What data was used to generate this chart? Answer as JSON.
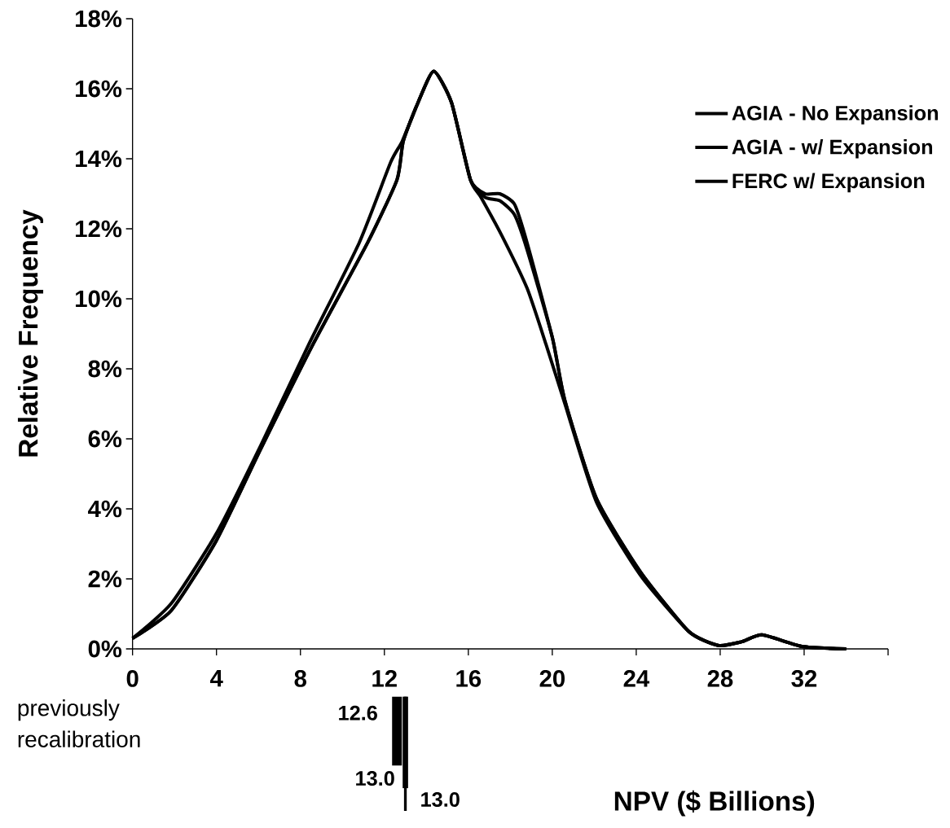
{
  "chart_data": {
    "type": "line",
    "xlabel": "NPV ($ Billions)",
    "ylabel": "Relative Frequency",
    "xlim": [
      0,
      36
    ],
    "ylim": [
      0,
      18
    ],
    "xticks": [
      0,
      4,
      8,
      12,
      16,
      20,
      24,
      28,
      32,
      {
        "value": 36,
        "label": null
      }
    ],
    "yticks": [
      {
        "value": 0,
        "label": "0%"
      },
      {
        "value": 2,
        "label": "2%"
      },
      {
        "value": 4,
        "label": "4%"
      },
      {
        "value": 6,
        "label": "6%"
      },
      {
        "value": 8,
        "label": "8%"
      },
      {
        "value": 10,
        "label": "10%"
      },
      {
        "value": 12,
        "label": "12%"
      },
      {
        "value": 14,
        "label": "14%"
      },
      {
        "value": 16,
        "label": "16%"
      },
      {
        "value": 18,
        "label": "18%"
      }
    ],
    "grid": false,
    "legend": "top right",
    "marker": "none",
    "line_style": "solid",
    "series": [
      {
        "name": "AGIA - No Expansion",
        "color": "#000000",
        "x": [
          0,
          1.85,
          4,
          6.1,
          8.6,
          11.2,
          12.6,
          12.9,
          13.6,
          14.35,
          15.2,
          16.1,
          16.8,
          17.5,
          18.2,
          18.8,
          20,
          20.6,
          22.1,
          24.2,
          26.5,
          27.9,
          29,
          30,
          31.9,
          34
        ],
        "values": [
          0.3,
          1.1,
          3.1,
          5.7,
          8.7,
          11.6,
          13.4,
          14.5,
          15.6,
          16.5,
          15.6,
          13.4,
          13.0,
          13.0,
          12.7,
          11.6,
          8.9,
          7.1,
          4.3,
          2.2,
          0.5,
          0.1,
          0.2,
          0.4,
          0.07,
          0
        ]
      },
      {
        "name": "AGIA - w/ Expansion",
        "color": "#000000",
        "x": [
          0,
          1.85,
          4,
          6.1,
          8.6,
          11.2,
          12.6,
          12.9,
          13.6,
          14.35,
          15.2,
          16.1,
          16.8,
          17.5,
          18.2,
          18.8,
          20,
          20.6,
          22.1,
          24.2,
          26.5,
          27.9,
          29,
          30,
          31.9,
          34
        ],
        "values": [
          0.3,
          1.1,
          3.1,
          5.7,
          8.7,
          11.6,
          13.4,
          14.5,
          15.6,
          16.5,
          15.6,
          13.4,
          12.9,
          12.8,
          12.4,
          11.4,
          8.9,
          7.1,
          4.3,
          2.2,
          0.5,
          0.1,
          0.2,
          0.4,
          0.07,
          0
        ]
      },
      {
        "name": "FERC w/ Expansion",
        "color": "#000000",
        "x": [
          0,
          1.85,
          4,
          6.1,
          8.4,
          10.8,
          12.3,
          12.85,
          13.6,
          14.35,
          15.2,
          16.1,
          16.6,
          17.6,
          18.8,
          19.7,
          20.6,
          22.1,
          24.2,
          26.5,
          27.9,
          29,
          30,
          31.9,
          34
        ],
        "values": [
          0.3,
          1.3,
          3.3,
          5.8,
          8.7,
          11.6,
          13.9,
          14.5,
          15.6,
          16.5,
          15.6,
          13.4,
          12.9,
          11.8,
          10.3,
          8.7,
          7.0,
          4.2,
          2.1,
          0.5,
          0.1,
          0.2,
          0.4,
          0.07,
          0
        ]
      }
    ],
    "ref_lines": [
      {
        "axis": "x",
        "value": 12.6,
        "label": "12.6",
        "color": "#000000"
      },
      {
        "axis": "x",
        "value": 13.0,
        "label": "13.0",
        "color": "#000000"
      },
      {
        "axis": "x",
        "value": 13.0,
        "label": "13.0",
        "color": "#000000"
      }
    ],
    "annotations": [
      "previously",
      "recalibration"
    ]
  }
}
